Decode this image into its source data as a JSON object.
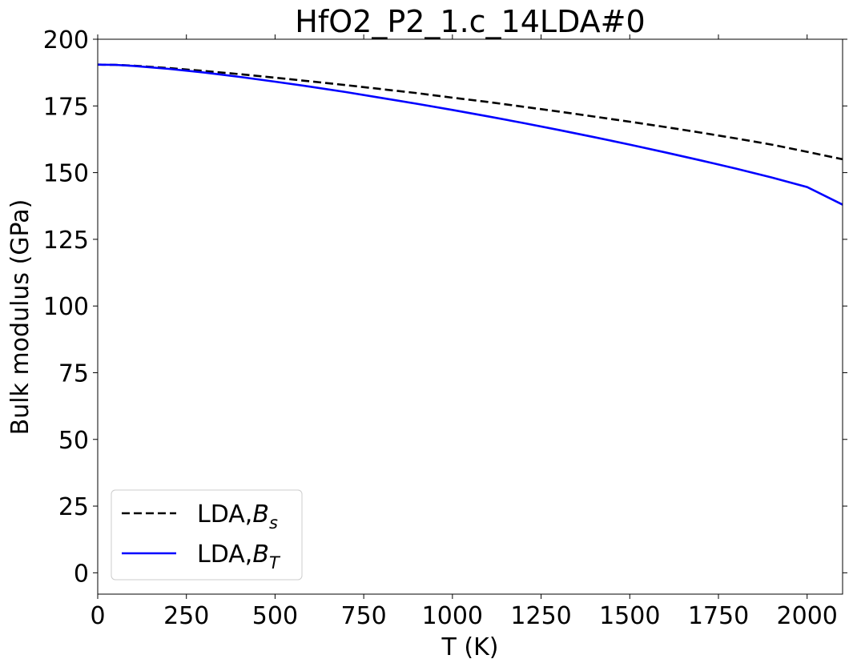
{
  "chart_data": {
    "type": "line",
    "title": "HfO2_P2_1.c_14LDA#0",
    "xlabel": "T (K)",
    "ylabel": "Bulk modulus (GPa)",
    "xlim": [
      0,
      2100
    ],
    "ylim": [
      -8,
      200
    ],
    "xticks": [
      0,
      250,
      500,
      750,
      1000,
      1250,
      1500,
      1750,
      2000
    ],
    "yticks": [
      0,
      25,
      50,
      75,
      100,
      125,
      150,
      175,
      200
    ],
    "xtick_labels": [
      "0",
      "250",
      "500",
      "750",
      "1000",
      "1250",
      "1500",
      "1750",
      "2000"
    ],
    "ytick_labels": [
      "0",
      "25",
      "50",
      "75",
      "100",
      "125",
      "150",
      "175",
      "200"
    ],
    "grid": false,
    "legend_position": "lower-left",
    "series": [
      {
        "name": "LDA,B_s",
        "legend_prefix": "LDA,",
        "legend_symbol": "B",
        "legend_subscript": "s",
        "color": "#000000",
        "style": "dashed",
        "x": [
          0,
          50,
          100,
          200,
          300,
          400,
          500,
          600,
          700,
          800,
          900,
          1000,
          1100,
          1200,
          1300,
          1400,
          1500,
          1600,
          1700,
          1800,
          1900,
          2000,
          2100
        ],
        "y": [
          190.5,
          190.4,
          190.1,
          189.2,
          188.1,
          186.9,
          185.6,
          184.2,
          182.8,
          181.3,
          179.8,
          178.1,
          176.5,
          174.7,
          172.9,
          171.0,
          169.1,
          167.1,
          165.0,
          162.8,
          160.5,
          157.8,
          155.0
        ]
      },
      {
        "name": "LDA,B_T",
        "legend_prefix": "LDA,",
        "legend_symbol": "B",
        "legend_subscript": "T",
        "color": "#0000ff",
        "style": "solid",
        "x": [
          0,
          50,
          100,
          200,
          300,
          400,
          500,
          600,
          700,
          800,
          900,
          1000,
          1100,
          1200,
          1300,
          1400,
          1500,
          1600,
          1700,
          1800,
          1900,
          2000,
          2100
        ],
        "y": [
          190.5,
          190.4,
          190.0,
          188.9,
          187.5,
          185.9,
          184.1,
          182.2,
          180.2,
          178.0,
          175.8,
          173.5,
          171.1,
          168.6,
          166.0,
          163.3,
          160.5,
          157.6,
          154.6,
          151.5,
          148.2,
          144.6,
          138.0
        ]
      }
    ]
  }
}
